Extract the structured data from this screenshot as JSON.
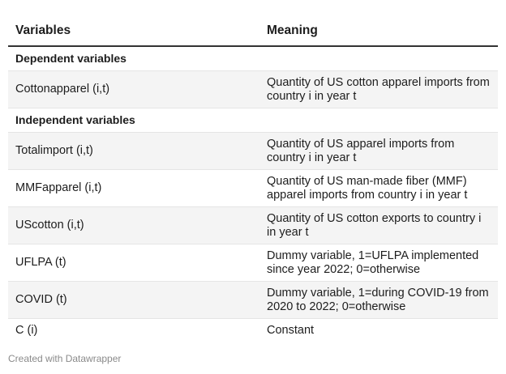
{
  "table": {
    "header": {
      "variables": "Variables",
      "meaning": "Meaning"
    },
    "rows": [
      {
        "type": "section",
        "variable": "Dependent variables",
        "meaning": ""
      },
      {
        "type": "data",
        "variable": "Cottonapparel (i,t)",
        "meaning": "Quantity of US cotton apparel imports from country i in year t"
      },
      {
        "type": "section",
        "variable": "Independent variables",
        "meaning": ""
      },
      {
        "type": "data",
        "variable": "Totalimport (i,t)",
        "meaning": "Quantity of US apparel imports from country i in year t"
      },
      {
        "type": "data",
        "variable": "MMFapparel (i,t)",
        "meaning": "Quantity of US man-made fiber (MMF) apparel imports from country i in year t"
      },
      {
        "type": "data",
        "variable": "UScotton (i,t)",
        "meaning": "Quantity of US cotton exports to country i in year t"
      },
      {
        "type": "data",
        "variable": "UFLPA (t)",
        "meaning": "Dummy variable, 1=UFLPA implemented since year 2022; 0=otherwise"
      },
      {
        "type": "data",
        "variable": "COVID (t)",
        "meaning": "Dummy variable, 1=during COVID-19 from 2020 to 2022; 0=otherwise"
      },
      {
        "type": "data",
        "variable": "C (i)",
        "meaning": "Constant"
      }
    ]
  },
  "footer": {
    "credit": "Created with Datawrapper"
  },
  "colors": {
    "text": "#1d1d1d",
    "shaded_row": "#f4f4f4",
    "header_rule": "#333333",
    "row_divider": "#e5e5e5",
    "footer_text": "#8a8a8a"
  }
}
